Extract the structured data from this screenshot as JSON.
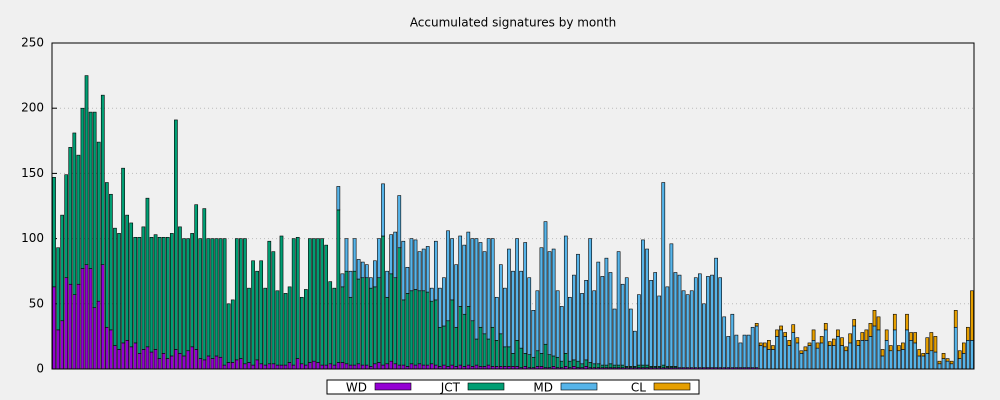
{
  "chart_data": {
    "type": "stacked-bar",
    "title": "Accumulated signatures by month",
    "ylim": [
      0,
      250
    ],
    "yticks": [
      0,
      50,
      100,
      150,
      200,
      250
    ],
    "grid": true,
    "legend": "bottom",
    "series": [
      {
        "name": "WD",
        "color": "#9400d3",
        "values": [
          63,
          30,
          37,
          70,
          65,
          57,
          65,
          77,
          80,
          77,
          47,
          52,
          80,
          32,
          30,
          18,
          15,
          20,
          22,
          17,
          20,
          12,
          15,
          17,
          13,
          15,
          8,
          12,
          8,
          10,
          15,
          12,
          10,
          14,
          17,
          15,
          8,
          7,
          10,
          8,
          10,
          9,
          3,
          5,
          5,
          7,
          8,
          4,
          5,
          3,
          7,
          4,
          3,
          4,
          4,
          3,
          3,
          3,
          5,
          3,
          8,
          4,
          3,
          5,
          6,
          5,
          3,
          3,
          4,
          3,
          5,
          5,
          4,
          3,
          3,
          4,
          3,
          3,
          2,
          4,
          5,
          3,
          4,
          6,
          4,
          3,
          3,
          2,
          4,
          3,
          4,
          3,
          3,
          4,
          3,
          2,
          3,
          2,
          3,
          2,
          3,
          2,
          3,
          2,
          3,
          2,
          2,
          3,
          2,
          2,
          2,
          2,
          2,
          2,
          2,
          1,
          2,
          1,
          1,
          2,
          2,
          1,
          1,
          2,
          1,
          1,
          2,
          1,
          2,
          1,
          1,
          2,
          1,
          1,
          1,
          1,
          1,
          1,
          1,
          1,
          1,
          1,
          1,
          1,
          1,
          1,
          1,
          1,
          1,
          1,
          1,
          1,
          1,
          1,
          1,
          1,
          1,
          1,
          1,
          1,
          1,
          1,
          1,
          1,
          1,
          1,
          1,
          1,
          1,
          1,
          1,
          1,
          1,
          1,
          0,
          0,
          0,
          0,
          0,
          0,
          0,
          0,
          0,
          0,
          0,
          0,
          0,
          0,
          0,
          0,
          0,
          0,
          0,
          0,
          0,
          0,
          0,
          0,
          0,
          0,
          0,
          0,
          0,
          0,
          0,
          0,
          0,
          0,
          0,
          0,
          0,
          0,
          0,
          0,
          0,
          0,
          0,
          0,
          0,
          0,
          0,
          0,
          0,
          0,
          0,
          0,
          0
        ]
      },
      {
        "name": "JCT",
        "color": "#009e73",
        "values": [
          84,
          63,
          81,
          79,
          105,
          124,
          99,
          123,
          145,
          120,
          150,
          122,
          130,
          111,
          104,
          90,
          89,
          134,
          96,
          95,
          81,
          89,
          94,
          114,
          88,
          88,
          93,
          89,
          93,
          94,
          176,
          97,
          90,
          86,
          87,
          111,
          92,
          116,
          90,
          92,
          90,
          91,
          97,
          45,
          48,
          93,
          92,
          96,
          57,
          80,
          68,
          79,
          59,
          94,
          86,
          57,
          99,
          55,
          58,
          97,
          93,
          51,
          58,
          95,
          94,
          95,
          97,
          92,
          63,
          59,
          117,
          58,
          71,
          52,
          72,
          65,
          67,
          67,
          60,
          59,
          65,
          99,
          51,
          67,
          66,
          90,
          50,
          56,
          56,
          58,
          56,
          57,
          56,
          48,
          50,
          30,
          30,
          35,
          50,
          30,
          45,
          40,
          45,
          35,
          20,
          30,
          25,
          20,
          30,
          20,
          25,
          15,
          15,
          10,
          20,
          15,
          10,
          10,
          8,
          12,
          10,
          18,
          10,
          8,
          8,
          5,
          10,
          5,
          5,
          5,
          3,
          5,
          4,
          3,
          3,
          2,
          2,
          3,
          2,
          2,
          2,
          1,
          1,
          1,
          2,
          2,
          2,
          1,
          1,
          1,
          2,
          1,
          1,
          1,
          0,
          0,
          0,
          0,
          0,
          0,
          0,
          0,
          0,
          0,
          0,
          0,
          0,
          0,
          0,
          0,
          0,
          0,
          0,
          0,
          0,
          0,
          0,
          0,
          0,
          0,
          0,
          0,
          0,
          0,
          0,
          0,
          0,
          0,
          0,
          0,
          0,
          0,
          0,
          0,
          0,
          0,
          0,
          0,
          0,
          0,
          0,
          0,
          0,
          0,
          0,
          0,
          0,
          0,
          0,
          0,
          0,
          0,
          0,
          0,
          0,
          0,
          0,
          0,
          0,
          0,
          0,
          0,
          0,
          0,
          0,
          0,
          0
        ]
      },
      {
        "name": "MD",
        "color": "#56b4e9",
        "values": [
          0,
          0,
          0,
          0,
          0,
          0,
          0,
          0,
          0,
          0,
          0,
          0,
          0,
          0,
          0,
          0,
          0,
          0,
          0,
          0,
          0,
          0,
          0,
          0,
          0,
          0,
          0,
          0,
          0,
          0,
          0,
          0,
          0,
          0,
          0,
          0,
          0,
          0,
          0,
          0,
          0,
          0,
          0,
          0,
          0,
          0,
          0,
          0,
          0,
          0,
          0,
          0,
          0,
          0,
          0,
          0,
          0,
          0,
          0,
          0,
          0,
          0,
          0,
          0,
          0,
          0,
          0,
          0,
          0,
          0,
          18,
          10,
          25,
          20,
          25,
          15,
          12,
          10,
          8,
          20,
          30,
          40,
          20,
          30,
          35,
          40,
          45,
          20,
          40,
          38,
          30,
          32,
          35,
          10,
          45,
          30,
          37,
          69,
          47,
          48,
          54,
          53,
          57,
          63,
          77,
          65,
          63,
          77,
          68,
          33,
          53,
          45,
          75,
          63,
          78,
          59,
          85,
          59,
          36,
          46,
          81,
          94,
          79,
          82,
          51,
          42,
          90,
          49,
          65,
          82,
          54,
          61,
          95,
          56,
          78,
          68,
          82,
          70,
          43,
          87,
          62,
          68,
          44,
          27,
          54,
          96,
          89,
          66,
          72,
          54,
          140,
          61,
          94,
          72,
          71,
          59,
          56,
          59,
          69,
          72,
          49,
          70,
          71,
          84,
          69,
          39,
          24,
          41,
          25,
          19,
          25,
          25,
          31,
          32,
          18,
          17,
          15,
          15,
          25,
          30,
          25,
          18,
          28,
          20,
          12,
          14,
          18,
          22,
          16,
          20,
          30,
          18,
          18,
          25,
          18,
          14,
          20,
          33,
          18,
          22,
          22,
          25,
          33,
          30,
          10,
          22,
          14,
          30,
          14,
          15,
          30,
          22,
          20,
          10,
          10,
          12,
          14,
          13,
          4,
          8,
          6,
          4,
          32,
          8,
          12,
          22,
          22
        ]
      },
      {
        "name": "CL",
        "color": "#e69f00",
        "values": [
          0,
          0,
          0,
          0,
          0,
          0,
          0,
          0,
          0,
          0,
          0,
          0,
          0,
          0,
          0,
          0,
          0,
          0,
          0,
          0,
          0,
          0,
          0,
          0,
          0,
          0,
          0,
          0,
          0,
          0,
          0,
          0,
          0,
          0,
          0,
          0,
          0,
          0,
          0,
          0,
          0,
          0,
          0,
          0,
          0,
          0,
          0,
          0,
          0,
          0,
          0,
          0,
          0,
          0,
          0,
          0,
          0,
          0,
          0,
          0,
          0,
          0,
          0,
          0,
          0,
          0,
          0,
          0,
          0,
          0,
          0,
          0,
          0,
          0,
          0,
          0,
          0,
          0,
          0,
          0,
          0,
          0,
          0,
          0,
          0,
          0,
          0,
          0,
          0,
          0,
          0,
          0,
          0,
          0,
          0,
          0,
          0,
          0,
          0,
          0,
          0,
          0,
          0,
          0,
          0,
          0,
          0,
          0,
          0,
          0,
          0,
          0,
          0,
          0,
          0,
          0,
          0,
          0,
          0,
          0,
          0,
          0,
          0,
          0,
          0,
          0,
          0,
          0,
          0,
          0,
          0,
          0,
          0,
          0,
          0,
          0,
          0,
          0,
          0,
          0,
          0,
          0,
          0,
          0,
          0,
          0,
          0,
          0,
          0,
          0,
          0,
          0,
          0,
          0,
          0,
          0,
          0,
          0,
          0,
          0,
          0,
          0,
          0,
          0,
          0,
          0,
          0,
          0,
          0,
          0,
          0,
          0,
          0,
          2,
          2,
          3,
          7,
          3,
          5,
          3,
          3,
          4,
          6,
          4,
          2,
          3,
          2,
          8,
          4,
          5,
          5,
          3,
          5,
          5,
          6,
          3,
          7,
          5,
          4,
          6,
          8,
          10,
          12,
          10,
          5,
          8,
          4,
          12,
          4,
          5,
          12,
          6,
          8,
          5,
          2,
          12,
          14,
          12,
          2,
          4,
          2,
          2,
          13,
          6,
          8,
          10,
          38
        ]
      }
    ]
  }
}
